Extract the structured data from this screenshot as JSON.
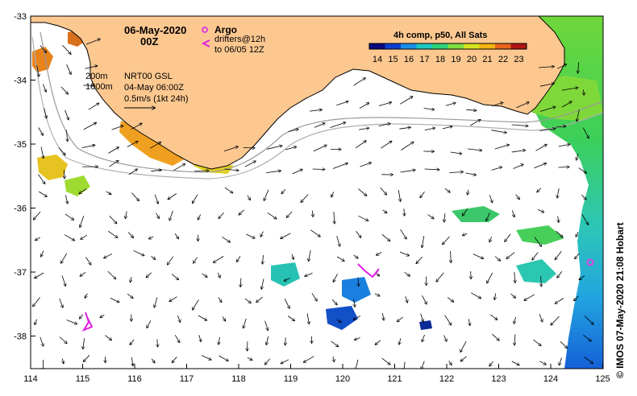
{
  "map": {
    "date_label": "06-May-2020",
    "time_label": "00Z",
    "argo_label": "Argo",
    "drifters_label": "drifters@12h",
    "drifters_to_label": "to 06/05 12Z",
    "isobath_200": "200m",
    "isobath_1000": "1000m",
    "model_label": "NRT00 GSL",
    "model_time_label": "04-May 06:00Z",
    "scale_label": "0.5m/s (1kt 24h)",
    "colorbar_title": "4h comp, p50, All Sats",
    "colorbar_ticks": [
      "14",
      "15",
      "16",
      "17",
      "18",
      "19",
      "20",
      "21",
      "22",
      "23"
    ],
    "colorbar_colors": [
      "#0a0a80",
      "#0b3fd1",
      "#1c8fe8",
      "#1fc7c2",
      "#2fd27a",
      "#7fe040",
      "#d5e31f",
      "#f3b40f",
      "#e8641b",
      "#b01515"
    ],
    "x_ticks": [
      "114",
      "115",
      "116",
      "117",
      "118",
      "119",
      "120",
      "121",
      "122",
      "123",
      "124",
      "125"
    ],
    "y_ticks": [
      "-33",
      "-34",
      "-35",
      "-36",
      "-37",
      "-38"
    ],
    "credit": "© IMOS 07-May-2020 21:08 Hobart",
    "land_color": "#fcc890",
    "argo_color": "#e040e0"
  }
}
